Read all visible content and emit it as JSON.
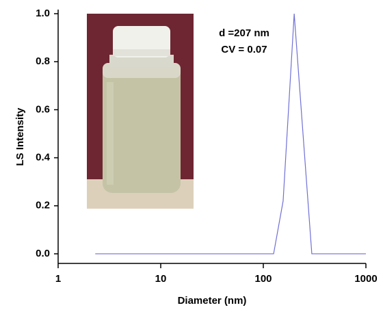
{
  "chart_data": {
    "type": "line",
    "x": [
      2.3,
      126,
      156,
      200,
      297,
      1000
    ],
    "values": [
      0,
      0,
      0.22,
      1.0,
      0,
      0
    ],
    "color": "#6f6fd6",
    "xlabel": "Diameter (nm)",
    "ylabel": "LS Intensity",
    "xlim": [
      1,
      1000
    ],
    "xticks": [
      1,
      10,
      100,
      1000
    ],
    "xscale": "log",
    "ylim": [
      -0.04,
      1.0
    ],
    "yticks": [
      {
        "value": 0,
        "label": "0.0"
      },
      0.2,
      0.4,
      0.6,
      0.8,
      {
        "value": 1,
        "label": "1.0"
      }
    ],
    "annotations": [
      "d =207 nm",
      "CV = 0.07"
    ]
  }
}
